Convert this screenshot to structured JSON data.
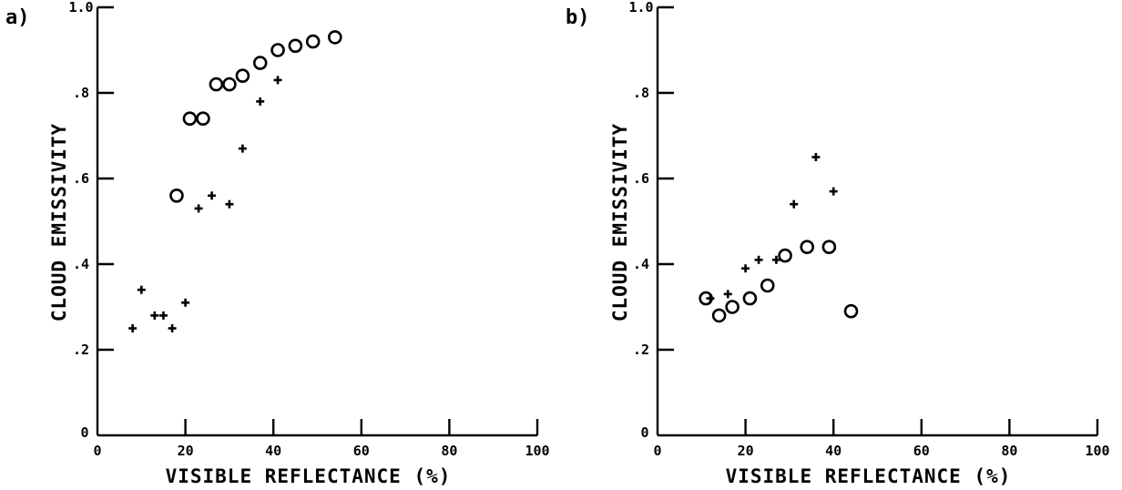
{
  "chart_data": [
    {
      "type": "scatter",
      "panel_label": "a)",
      "xlabel": "VISIBLE REFLECTANCE (%)",
      "ylabel": "CLOUD EMISSIVITY",
      "xlim": [
        0,
        100
      ],
      "ylim": [
        0,
        1.0
      ],
      "x_ticks": [
        "0",
        "20",
        "40",
        "60",
        "80",
        "100"
      ],
      "y_ticks": [
        ".2",
        ".4",
        ".6",
        ".8",
        "1.0"
      ],
      "y_zero_label": "0",
      "grid": false,
      "series": [
        {
          "marker": "circle",
          "points": [
            {
              "x": 18,
              "y": 0.56
            },
            {
              "x": 21,
              "y": 0.74
            },
            {
              "x": 24,
              "y": 0.74
            },
            {
              "x": 27,
              "y": 0.82
            },
            {
              "x": 30,
              "y": 0.82
            },
            {
              "x": 33,
              "y": 0.84
            },
            {
              "x": 37,
              "y": 0.87
            },
            {
              "x": 41,
              "y": 0.9
            },
            {
              "x": 45,
              "y": 0.91
            },
            {
              "x": 49,
              "y": 0.92
            },
            {
              "x": 54,
              "y": 0.93
            }
          ]
        },
        {
          "marker": "plus",
          "points": [
            {
              "x": 8,
              "y": 0.25
            },
            {
              "x": 10,
              "y": 0.34
            },
            {
              "x": 13,
              "y": 0.28
            },
            {
              "x": 15,
              "y": 0.28
            },
            {
              "x": 17,
              "y": 0.25
            },
            {
              "x": 20,
              "y": 0.31
            },
            {
              "x": 23,
              "y": 0.53
            },
            {
              "x": 26,
              "y": 0.56
            },
            {
              "x": 30,
              "y": 0.54
            },
            {
              "x": 33,
              "y": 0.67
            },
            {
              "x": 37,
              "y": 0.78
            },
            {
              "x": 41,
              "y": 0.83
            }
          ]
        }
      ]
    },
    {
      "type": "scatter",
      "panel_label": "b)",
      "xlabel": "VISIBLE REFLECTANCE (%)",
      "ylabel": "CLOUD EMISSIVITY",
      "xlim": [
        0,
        100
      ],
      "ylim": [
        0,
        1.0
      ],
      "x_ticks": [
        "0",
        "20",
        "40",
        "60",
        "80",
        "100"
      ],
      "y_ticks": [
        ".2",
        ".4",
        ".6",
        ".8",
        "1.0"
      ],
      "y_zero_label": "0",
      "grid": false,
      "series": [
        {
          "marker": "circle",
          "points": [
            {
              "x": 11,
              "y": 0.32
            },
            {
              "x": 14,
              "y": 0.28
            },
            {
              "x": 17,
              "y": 0.3
            },
            {
              "x": 21,
              "y": 0.32
            },
            {
              "x": 25,
              "y": 0.35
            },
            {
              "x": 29,
              "y": 0.42
            },
            {
              "x": 34,
              "y": 0.44
            },
            {
              "x": 39,
              "y": 0.44
            },
            {
              "x": 44,
              "y": 0.29
            }
          ]
        },
        {
          "marker": "plus",
          "points": [
            {
              "x": 12,
              "y": 0.32
            },
            {
              "x": 16,
              "y": 0.33
            },
            {
              "x": 20,
              "y": 0.39
            },
            {
              "x": 23,
              "y": 0.41
            },
            {
              "x": 27,
              "y": 0.41
            },
            {
              "x": 31,
              "y": 0.54
            },
            {
              "x": 36,
              "y": 0.65
            },
            {
              "x": 40,
              "y": 0.57
            }
          ]
        }
      ]
    }
  ]
}
